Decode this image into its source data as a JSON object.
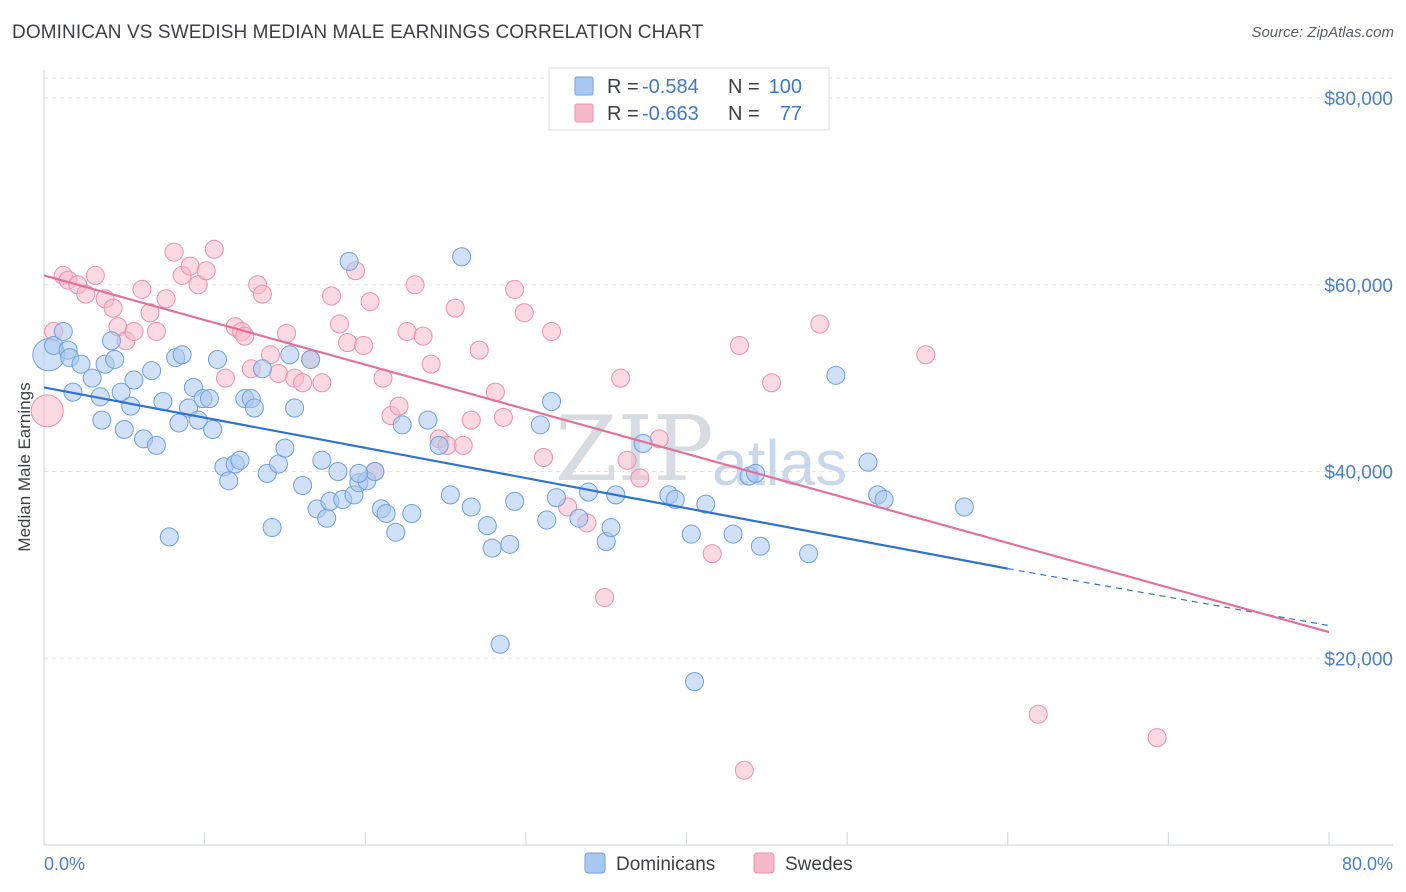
{
  "title": "DOMINICAN VS SWEDISH MEDIAN MALE EARNINGS CORRELATION CHART",
  "source": "Source: ZipAtlas.com",
  "watermark": {
    "zip": "ZIP",
    "atlas": "atlas"
  },
  "colors": {
    "dominicans_fill": "#a9c8f0",
    "dominicans_stroke": "#6f9fdc",
    "dominicans_line": "#2f73d0",
    "swedes_fill": "#f6b9cc",
    "swedes_stroke": "#ec8fad",
    "swedes_line": "#e4709a",
    "grid": "#dfe3e8",
    "tick_text": "#4a7fc9"
  },
  "legend": {
    "rows": [
      {
        "r_label": "R =",
        "r_value": "-0.584",
        "n_label": "N =",
        "n_value": "100"
      },
      {
        "r_label": "R =",
        "r_value": "-0.663",
        "n_label": "N =",
        "n_value": "77"
      }
    ]
  },
  "bottom_legend": [
    "Dominicans",
    "Swedes"
  ],
  "chart_data": {
    "type": "scatter",
    "title": "DOMINICAN VS SWEDISH MEDIAN MALE EARNINGS CORRELATION CHART",
    "xlabel": "",
    "ylabel": "Median Male Earnings",
    "xlim": [
      0,
      80
    ],
    "ylim": [
      0,
      83000
    ],
    "x_tick_labels": [
      "0.0%",
      "80.0%"
    ],
    "y_ticks": [
      20000,
      40000,
      60000,
      80000
    ],
    "y_tick_labels": [
      "$20,000",
      "$40,000",
      "$60,000",
      "$80,000"
    ],
    "grid": true,
    "legend_position": "top-center",
    "series": [
      {
        "name": "Dominicans",
        "r": -0.584,
        "n": 100,
        "trend": {
          "x0": 0,
          "y0": 49000,
          "x1": 60,
          "y1": 29600,
          "dashed_to_x": 80,
          "dashed_to_y": 23500
        },
        "points": [
          [
            0.3,
            52500
          ],
          [
            0.6,
            53500
          ],
          [
            1.2,
            55000
          ],
          [
            1.5,
            53000
          ],
          [
            1.6,
            52200
          ],
          [
            1.8,
            48500
          ],
          [
            2.3,
            51500
          ],
          [
            3.0,
            50000
          ],
          [
            3.5,
            48000
          ],
          [
            3.6,
            45500
          ],
          [
            3.8,
            51500
          ],
          [
            4.2,
            54000
          ],
          [
            4.4,
            52000
          ],
          [
            4.8,
            48500
          ],
          [
            5.0,
            44500
          ],
          [
            5.4,
            47000
          ],
          [
            5.6,
            49800
          ],
          [
            6.2,
            43500
          ],
          [
            6.7,
            50800
          ],
          [
            7.0,
            42800
          ],
          [
            7.4,
            47500
          ],
          [
            7.8,
            33000
          ],
          [
            8.2,
            52200
          ],
          [
            8.4,
            45200
          ],
          [
            8.6,
            52500
          ],
          [
            9.0,
            46800
          ],
          [
            9.3,
            49000
          ],
          [
            9.6,
            45500
          ],
          [
            9.9,
            47800
          ],
          [
            10.3,
            47800
          ],
          [
            10.5,
            44500
          ],
          [
            10.8,
            52000
          ],
          [
            11.2,
            40500
          ],
          [
            11.5,
            39000
          ],
          [
            11.9,
            40800
          ],
          [
            12.2,
            41200
          ],
          [
            12.5,
            47800
          ],
          [
            12.9,
            47800
          ],
          [
            13.1,
            46800
          ],
          [
            13.6,
            51000
          ],
          [
            13.9,
            39800
          ],
          [
            14.2,
            34000
          ],
          [
            14.6,
            40800
          ],
          [
            15.0,
            42500
          ],
          [
            15.3,
            52500
          ],
          [
            15.6,
            46800
          ],
          [
            16.1,
            38500
          ],
          [
            16.6,
            52000
          ],
          [
            17.0,
            36000
          ],
          [
            17.3,
            41200
          ],
          [
            17.6,
            35000
          ],
          [
            17.8,
            36800
          ],
          [
            18.3,
            40000
          ],
          [
            18.6,
            37000
          ],
          [
            19.0,
            62500
          ],
          [
            19.3,
            37500
          ],
          [
            19.6,
            38800
          ],
          [
            20.1,
            39000
          ],
          [
            20.6,
            40000
          ],
          [
            21.0,
            36000
          ],
          [
            21.3,
            35500
          ],
          [
            21.9,
            33500
          ],
          [
            22.3,
            45000
          ],
          [
            22.9,
            35500
          ],
          [
            23.9,
            45500
          ],
          [
            24.6,
            42800
          ],
          [
            25.3,
            37500
          ],
          [
            26.0,
            63000
          ],
          [
            26.6,
            36200
          ],
          [
            27.6,
            34200
          ],
          [
            27.9,
            31800
          ],
          [
            28.4,
            21500
          ],
          [
            29.0,
            32200
          ],
          [
            29.3,
            36800
          ],
          [
            30.9,
            45000
          ],
          [
            31.3,
            34800
          ],
          [
            31.6,
            47500
          ],
          [
            31.9,
            37200
          ],
          [
            33.3,
            35000
          ],
          [
            33.9,
            37800
          ],
          [
            35.0,
            32500
          ],
          [
            35.3,
            34000
          ],
          [
            35.6,
            37500
          ],
          [
            37.3,
            43000
          ],
          [
            38.9,
            37500
          ],
          [
            39.3,
            37000
          ],
          [
            40.3,
            33300
          ],
          [
            40.5,
            17500
          ],
          [
            41.2,
            36500
          ],
          [
            42.9,
            33300
          ],
          [
            43.9,
            39500
          ],
          [
            44.3,
            39800
          ],
          [
            44.6,
            32000
          ],
          [
            47.6,
            31200
          ],
          [
            49.3,
            50300
          ],
          [
            51.3,
            41000
          ],
          [
            51.9,
            37500
          ],
          [
            52.3,
            37000
          ],
          [
            57.3,
            36200
          ],
          [
            19.6,
            39800
          ]
        ]
      },
      {
        "name": "Swedes",
        "r": -0.663,
        "n": 77,
        "trend": {
          "x0": 0,
          "y0": 61000,
          "x1": 80,
          "y1": 22800
        },
        "points": [
          [
            0.2,
            46500
          ],
          [
            0.6,
            55000
          ],
          [
            1.2,
            61000
          ],
          [
            1.5,
            60500
          ],
          [
            2.1,
            60000
          ],
          [
            2.6,
            59000
          ],
          [
            3.2,
            61000
          ],
          [
            3.8,
            58500
          ],
          [
            4.3,
            57500
          ],
          [
            4.6,
            55500
          ],
          [
            5.1,
            54000
          ],
          [
            5.6,
            55000
          ],
          [
            6.1,
            59500
          ],
          [
            6.6,
            57000
          ],
          [
            7.0,
            55000
          ],
          [
            7.6,
            58500
          ],
          [
            8.1,
            63500
          ],
          [
            8.6,
            61000
          ],
          [
            9.1,
            62000
          ],
          [
            9.6,
            60000
          ],
          [
            10.1,
            61500
          ],
          [
            10.6,
            63800
          ],
          [
            11.3,
            50000
          ],
          [
            11.9,
            55500
          ],
          [
            12.3,
            55000
          ],
          [
            12.5,
            54500
          ],
          [
            12.9,
            51000
          ],
          [
            13.3,
            60000
          ],
          [
            13.6,
            59000
          ],
          [
            14.1,
            52500
          ],
          [
            14.6,
            50500
          ],
          [
            15.1,
            54800
          ],
          [
            15.6,
            50000
          ],
          [
            16.1,
            49500
          ],
          [
            16.6,
            52000
          ],
          [
            17.3,
            49500
          ],
          [
            17.9,
            58800
          ],
          [
            18.4,
            55800
          ],
          [
            18.9,
            53800
          ],
          [
            19.4,
            61500
          ],
          [
            19.9,
            53500
          ],
          [
            20.3,
            58200
          ],
          [
            20.6,
            40000
          ],
          [
            21.1,
            50000
          ],
          [
            21.6,
            46000
          ],
          [
            22.1,
            47000
          ],
          [
            22.6,
            55000
          ],
          [
            23.1,
            60000
          ],
          [
            23.6,
            54500
          ],
          [
            24.1,
            51500
          ],
          [
            24.6,
            43500
          ],
          [
            25.1,
            42800
          ],
          [
            25.6,
            57500
          ],
          [
            26.1,
            42800
          ],
          [
            26.6,
            45500
          ],
          [
            27.1,
            53000
          ],
          [
            28.1,
            48500
          ],
          [
            28.6,
            45800
          ],
          [
            29.3,
            59500
          ],
          [
            29.9,
            57000
          ],
          [
            31.1,
            41500
          ],
          [
            31.6,
            55000
          ],
          [
            32.6,
            36200
          ],
          [
            33.8,
            34500
          ],
          [
            34.9,
            26500
          ],
          [
            35.9,
            50000
          ],
          [
            36.3,
            41200
          ],
          [
            37.1,
            39300
          ],
          [
            38.3,
            43500
          ],
          [
            41.6,
            31200
          ],
          [
            43.3,
            53500
          ],
          [
            43.6,
            8000
          ],
          [
            45.3,
            49500
          ],
          [
            48.3,
            55800
          ],
          [
            54.9,
            52500
          ],
          [
            61.9,
            14000
          ],
          [
            69.3,
            11500
          ]
        ]
      }
    ]
  }
}
